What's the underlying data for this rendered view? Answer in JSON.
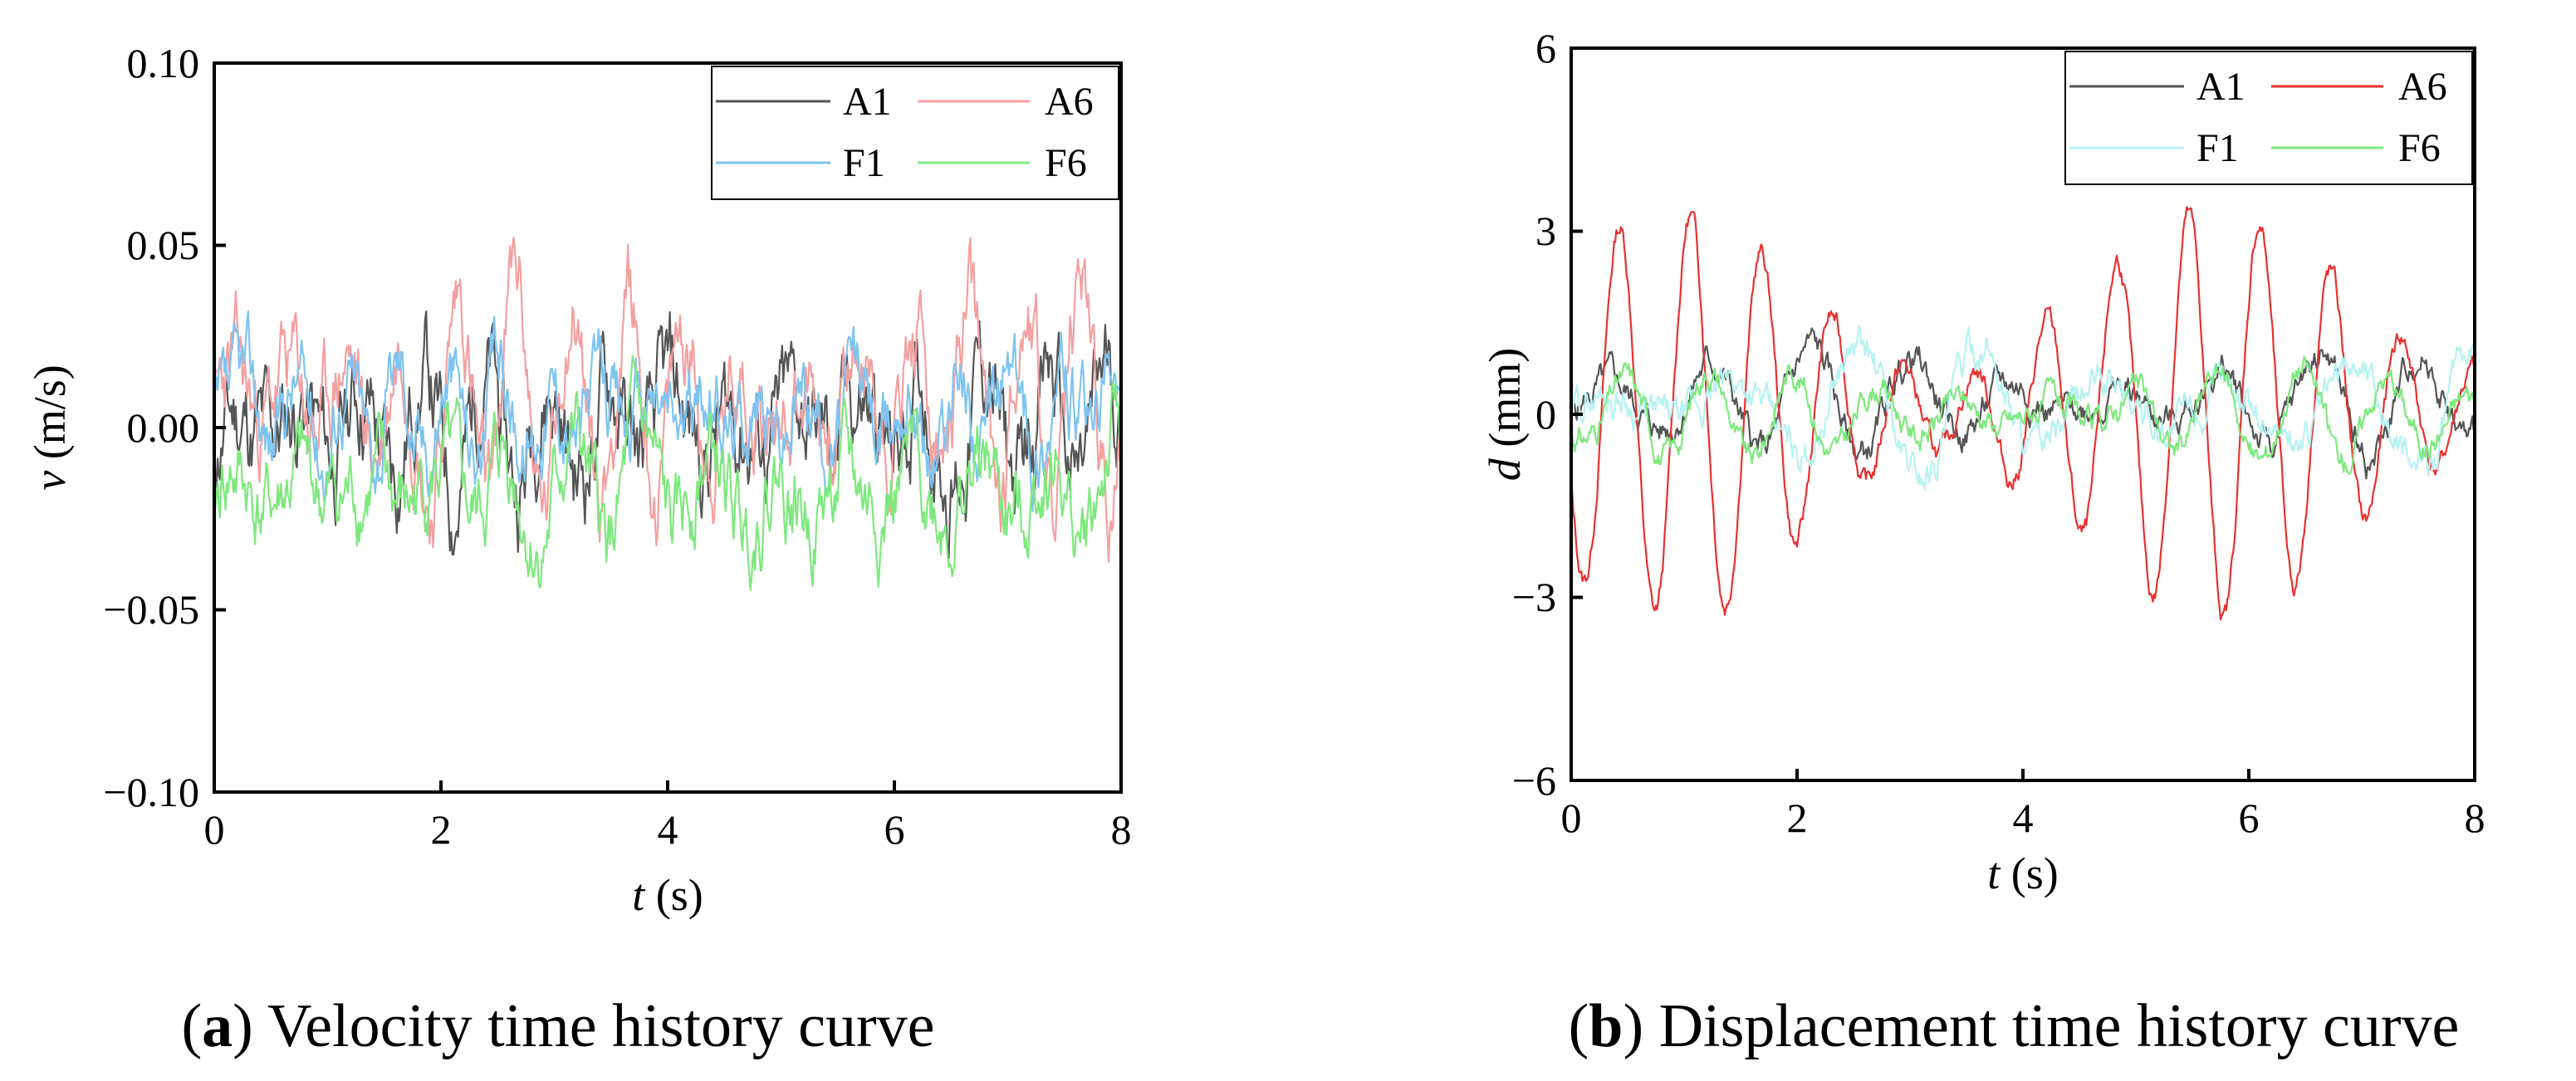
{
  "chart_data": [
    {
      "type": "line",
      "title": "",
      "caption_letter": "a",
      "caption_text": " Velocity time history curve",
      "xlabel_var": "t",
      "xlabel_unit": " (s)",
      "ylabel_var": "v",
      "ylabel_unit": " (m/s)",
      "xlim": [
        0,
        8
      ],
      "ylim": [
        -0.1,
        0.1
      ],
      "xticks": [
        "0",
        "2",
        "4",
        "6",
        "8"
      ],
      "yticks": [
        "−0.10",
        "−0.05",
        "0.00",
        "0.05",
        "0.10"
      ],
      "legend_position": "top-right",
      "series": [
        {
          "name": "A1",
          "color": "#555555",
          "amplitude": 0.017,
          "mean": 0.0,
          "seed": 11,
          "period": 0.55,
          "noise": 0.02
        },
        {
          "name": "A6",
          "color": "#f4a0a0",
          "amplitude": 0.032,
          "mean": 0.008,
          "seed": 23,
          "period": 0.5,
          "noise": 0.018
        },
        {
          "name": "F1",
          "color": "#7fc4f0",
          "amplitude": 0.012,
          "mean": 0.005,
          "seed": 37,
          "period": 0.45,
          "noise": 0.015
        },
        {
          "name": "F6",
          "color": "#7ee87e",
          "amplitude": 0.015,
          "mean": -0.018,
          "seed": 41,
          "period": 0.6,
          "noise": 0.016
        }
      ]
    },
    {
      "type": "line",
      "title": "",
      "caption_letter": "b",
      "caption_text": " Displacement time history curve",
      "xlabel_var": "t",
      "xlabel_unit": " (s)",
      "ylabel_var": "d",
      "ylabel_unit": " (mm)",
      "xlim": [
        0,
        8
      ],
      "ylim": [
        -6,
        6
      ],
      "xticks": [
        "0",
        "2",
        "4",
        "6",
        "8"
      ],
      "yticks": [
        "−6",
        "−3",
        "0",
        "3",
        "6"
      ],
      "legend_position": "top-right",
      "series": [
        {
          "name": "A1",
          "color": "#555555",
          "amplitude": 0.9,
          "mean": 0.2,
          "seed": 5,
          "period": 0.9,
          "noise": 0.35
        },
        {
          "name": "A6",
          "color": "#e83030",
          "amplitude": 3.3,
          "mean": 0.0,
          "seed": 13,
          "period": 0.63,
          "noise": 0.25
        },
        {
          "name": "F1",
          "color": "#b8f2f2",
          "amplitude": 1.1,
          "mean": 0.1,
          "seed": 29,
          "period": 1.1,
          "noise": 0.4
        },
        {
          "name": "F6",
          "color": "#7ee87e",
          "amplitude": 0.8,
          "mean": 0.0,
          "seed": 31,
          "period": 0.75,
          "noise": 0.3
        }
      ]
    }
  ]
}
